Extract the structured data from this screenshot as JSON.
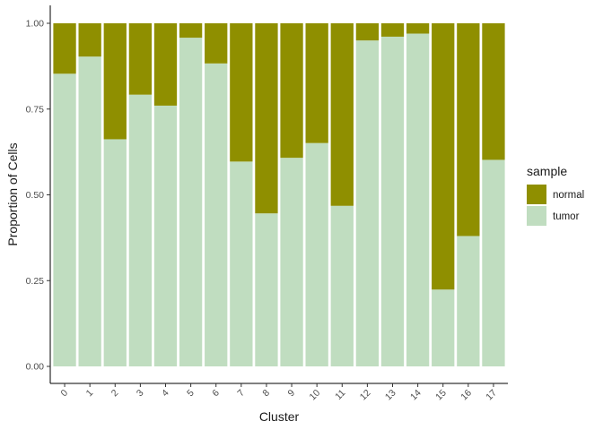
{
  "chart_data": {
    "type": "bar",
    "stacked": true,
    "xlabel": "Cluster",
    "ylabel": "Proportion of Cells",
    "ylim": [
      0,
      1
    ],
    "y_ticks": [
      "0.00",
      "0.25",
      "0.50",
      "0.75",
      "1.00"
    ],
    "categories": [
      "0",
      "1",
      "2",
      "3",
      "4",
      "5",
      "6",
      "7",
      "8",
      "9",
      "10",
      "11",
      "12",
      "13",
      "14",
      "15",
      "16",
      "17"
    ],
    "legend_title": "sample",
    "legend_position": "right",
    "grid": false,
    "series": [
      {
        "name": "tumor",
        "color": "#c0ddc0",
        "values": [
          0.853,
          0.903,
          0.662,
          0.792,
          0.76,
          0.958,
          0.883,
          0.597,
          0.446,
          0.608,
          0.651,
          0.468,
          0.95,
          0.961,
          0.97,
          0.224,
          0.38,
          0.602
        ]
      },
      {
        "name": "normal",
        "color": "#8f8f00",
        "values": [
          0.147,
          0.097,
          0.338,
          0.208,
          0.24,
          0.042,
          0.117,
          0.403,
          0.554,
          0.392,
          0.349,
          0.532,
          0.05,
          0.039,
          0.03,
          0.776,
          0.62,
          0.398
        ]
      }
    ],
    "legend_order": [
      "normal",
      "tumor"
    ]
  }
}
